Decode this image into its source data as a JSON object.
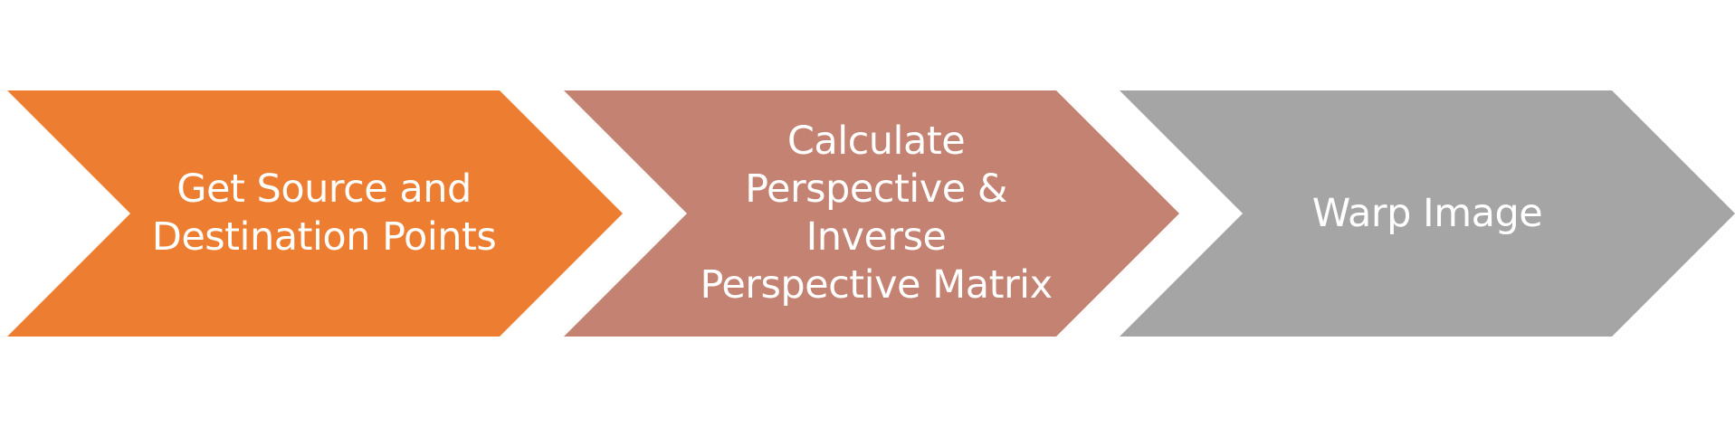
{
  "diagram": {
    "steps": [
      {
        "label": "Get Source and\nDestination Points",
        "color": "#ED7D31"
      },
      {
        "label": "Calculate\nPerspective &\nInverse\nPerspective Matrix",
        "color": "#C48272"
      },
      {
        "label": "Warp Image",
        "color": "#A5A5A5"
      }
    ]
  }
}
